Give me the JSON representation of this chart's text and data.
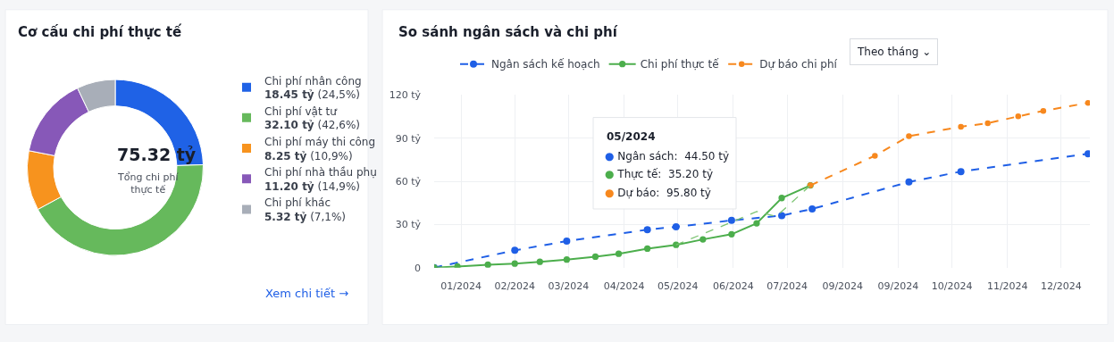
{
  "chart_data": [
    {
      "type": "donut",
      "title": "Cơ cấu chi phí thực tế",
      "categories": [
        "Chi phí nhân công",
        "Chi phí vật tư",
        "Chi phí máy thi công",
        "Chi phí nhà thầu phụ",
        "Chi phí khác"
      ],
      "values": [
        18.45,
        32.1,
        8.25,
        11.2,
        5.32
      ],
      "value_labels": [
        "18.45 tỷ (24,5%)",
        "32.10 tỷ (42,6%)",
        "8.25 tỷ (10,9%)",
        "11.20 tỷ (14,9%)",
        "5.32 tỷ (7,1%)"
      ],
      "colors": [
        "#1f62e6",
        "#66b95c",
        "#f7931e",
        "#8758b8",
        "#a8aeb8"
      ],
      "annotations": [
        "75.32 tỷ",
        "Tổng chi phí thực tế",
        "Xem chi tiết →"
      ],
      "legend": "right"
    },
    {
      "type": "line",
      "title": "So sánh ngân sách và chi phí",
      "xlim": [
        "2024-01-01",
        "2025-01-01"
      ],
      "xticks": [
        {
          "value": "2024-01-16",
          "label": "01/2024"
        },
        {
          "value": "2024-02-15",
          "label": "02/2024"
        },
        {
          "value": "2024-03-16",
          "label": "03/2024"
        },
        {
          "value": "2024-04-16",
          "label": "04/2024"
        },
        {
          "value": "2024-05-16",
          "label": "05/2024"
        },
        {
          "value": "2024-06-16",
          "label": "06/2024"
        },
        {
          "value": "2024-07-16",
          "label": "07/2024"
        },
        {
          "value": "2024-08-16",
          "label": "09/2024"
        },
        {
          "value": "2024-09-16",
          "label": "09/2024"
        },
        {
          "value": "2024-10-16",
          "label": "10/2024"
        },
        {
          "value": "2024-11-16",
          "label": "11/2024"
        },
        {
          "value": "2024-12-16",
          "label": "12/2024"
        }
      ],
      "ylim": [
        0,
        120
      ],
      "yticks": [
        0,
        {
          "value": 30,
          "label": "30 tỷ"
        },
        {
          "value": 60,
          "label": "60 tỷ"
        },
        {
          "value": 90,
          "label": "90 tỷ"
        },
        {
          "value": 120,
          "label": "120 tỷ"
        }
      ],
      "grid": true,
      "legend": "top",
      "marker": "circle",
      "series": [
        {
          "name": "Ngân sách kế hoạch",
          "color": "#1f5fe6",
          "line_style": "dashed",
          "x": [
            "2024-01-01",
            "2024-02-15",
            "2024-03-15",
            "2024-04-29",
            "2024-05-15",
            "2024-06-15",
            "2024-07-13",
            "2024-07-30",
            "2024-09-22",
            "2024-10-21",
            "2024-12-31"
          ],
          "values": [
            0,
            12,
            18.4,
            26.4,
            28.4,
            32.8,
            36.2,
            40.8,
            59.6,
            66.8,
            79.2
          ]
        },
        {
          "name": "Chi phí thực tế",
          "color": "#4cae4c",
          "line_style": "solid",
          "x": [
            "2024-01-01",
            "2024-01-14",
            "2024-01-31",
            "2024-02-15",
            "2024-02-29",
            "2024-03-15",
            "2024-03-31",
            "2024-04-13",
            "2024-04-29",
            "2024-05-15",
            "2024-05-30",
            "2024-06-15",
            "2024-06-29",
            "2024-07-13",
            "2024-07-29"
          ],
          "values": [
            0,
            0.8,
            2,
            2.8,
            4,
            5.6,
            7.6,
            9.6,
            13.2,
            15.8,
            19.6,
            23.2,
            30.8,
            48.4,
            57.2
          ]
        },
        {
          "name": "Dự báo chi phí",
          "color": "#f7881e",
          "line_style": "dashed",
          "x": [
            "2024-07-29",
            "2024-09-03",
            "2024-09-22",
            "2024-10-21",
            "2024-11-05",
            "2024-11-22",
            "2024-12-06",
            "2024-12-31"
          ],
          "values": [
            57.2,
            77.8,
            91.4,
            98,
            100.4,
            105.2,
            109,
            114.6
          ]
        },
        {
          "color": "#7cc472",
          "line_style": "dashed",
          "marker": "none",
          "x": [
            "2024-05-15",
            "2024-06-15",
            "2024-06-29",
            "2024-07-10",
            "2024-07-29"
          ],
          "values": [
            15.8,
            31.6,
            39,
            35.6,
            57.2
          ]
        }
      ],
      "annotations": [
        "05/2024",
        "● Ngân sách:  44.50 tỷ",
        "● Thực tế:  35.20 tỷ",
        "● Dự báo:  95.80 tỷ",
        "Theo tháng ⌄"
      ]
    }
  ]
}
